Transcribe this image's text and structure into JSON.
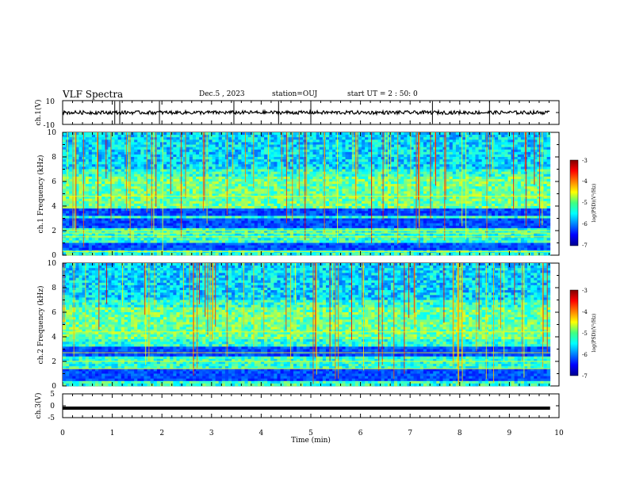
{
  "header": {
    "title": "VLF Spectra",
    "date": "Dec.5 , 2023",
    "station": "station=OUJ",
    "start_ut": "start UT = 2 : 50: 0"
  },
  "chart_data": {
    "type": "heatmap",
    "xlabel": "Time (min)",
    "xlim": [
      0,
      10
    ],
    "x_ticks": [
      "0",
      "1",
      "2",
      "3",
      "4",
      "5",
      "6",
      "7",
      "8",
      "9",
      "10"
    ],
    "panels": [
      {
        "id": "ch1-waveform",
        "type": "line",
        "ylabel": "ch.1(V)",
        "ylim": [
          -10,
          10
        ],
        "y_ticks": [
          "10",
          "-10"
        ],
        "baseline": 0,
        "data_end_min": 9.82,
        "spikes_min": [
          1.05,
          1.15,
          1.95,
          3.45,
          4.35,
          5.0,
          7.45,
          8.6
        ]
      },
      {
        "id": "ch1-spectrogram",
        "type": "heatmap",
        "ylabel": "ch.1 Frequency (kHz)",
        "ylim": [
          0,
          10
        ],
        "y_ticks": [
          "0",
          "2",
          "4",
          "6",
          "8",
          "10"
        ],
        "data_end_min": 9.82,
        "dark_bands_khz": [
          [
            0.4,
            1.0
          ],
          [
            2.3,
            3.0
          ],
          [
            3.2,
            3.7
          ]
        ],
        "line_khz": [
          0.3,
          1.5,
          1.8,
          2.0,
          4.8
        ],
        "colorbar": {
          "label": "log(PSD)(V²/Hz)",
          "ticks": [
            "-3",
            "-4",
            "-5",
            "-6",
            "-7"
          ],
          "range": [
            -7,
            -3
          ]
        }
      },
      {
        "id": "ch2-spectrogram",
        "type": "heatmap",
        "ylabel": "ch.2 Frequency (kHz)",
        "ylim": [
          0,
          10
        ],
        "y_ticks": [
          "0",
          "2",
          "4",
          "6",
          "8",
          "10"
        ],
        "data_end_min": 9.82,
        "dark_bands_khz": [
          [
            0.5,
            1.3
          ],
          [
            2.4,
            3.1
          ]
        ],
        "line_khz": [
          1.4,
          2.0,
          2.7,
          4.4
        ],
        "colorbar": {
          "label": "log(PSD)(V²/Hz)",
          "ticks": [
            "-3",
            "-4",
            "-5",
            "-6",
            "-7"
          ],
          "range": [
            -7,
            -3
          ]
        }
      },
      {
        "id": "ch3-waveform",
        "type": "line",
        "ylabel": "ch.3(V)",
        "ylim": [
          -5,
          5
        ],
        "y_ticks": [
          "5",
          "0",
          "-5"
        ],
        "baseline": -1.0,
        "data_end_min": 9.82
      }
    ]
  }
}
